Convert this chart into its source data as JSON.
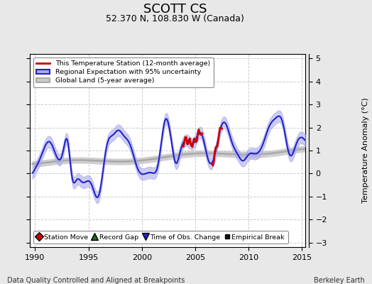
{
  "title": "SCOTT CS",
  "subtitle": "52.370 N, 108.830 W (Canada)",
  "xlabel_bottom": "Data Quality Controlled and Aligned at Breakpoints",
  "xlabel_right": "Berkeley Earth",
  "ylabel": "Temperature Anomaly (°C)",
  "xlim": [
    1989.5,
    2015.3
  ],
  "ylim": [
    -3.2,
    5.2
  ],
  "yticks": [
    -3,
    -2,
    -1,
    0,
    1,
    2,
    3,
    4,
    5
  ],
  "xticks": [
    1990,
    1995,
    2000,
    2005,
    2010,
    2015
  ],
  "bg_color": "#e8e8e8",
  "plot_bg_color": "#ffffff",
  "grid_color": "#cccccc",
  "reg_color": "#2222cc",
  "reg_fill": "#aaaaee",
  "global_color": "#aaaaaa",
  "global_fill": "#cccccc",
  "station_color": "#cc0000"
}
